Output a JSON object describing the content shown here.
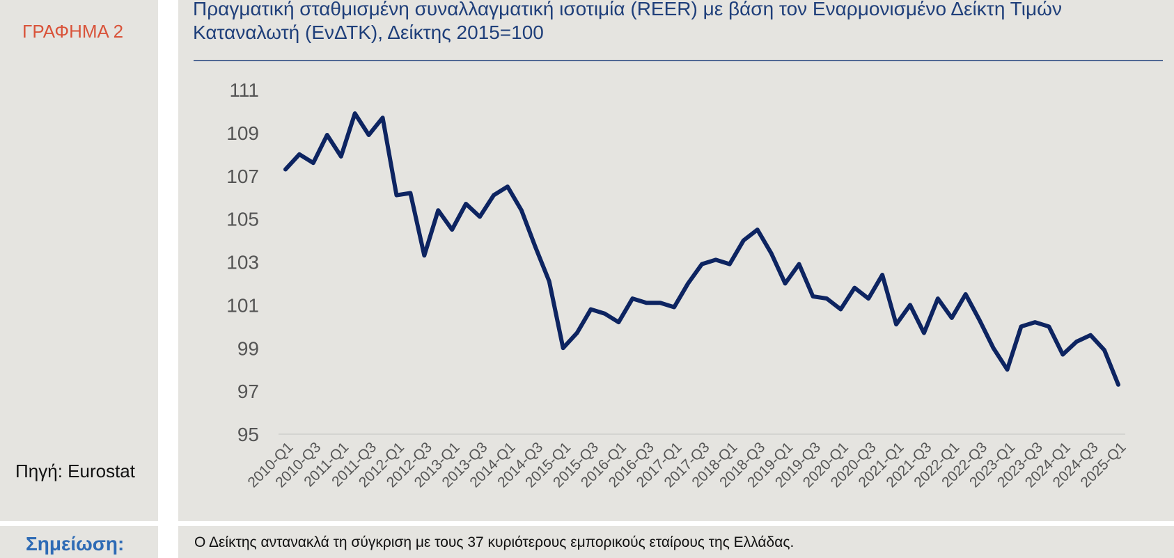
{
  "label": "ΓΡΑΦΗΜΑ 2",
  "source": "Πηγή: Eurostat",
  "note_label": "Σημείωση:",
  "note": "Ο Δείκτης αντανακλά τη σύγκριση με τους 37 κυριότερους εμπορικούς εταίρους της Ελλάδας.",
  "chart_data": {
    "type": "line",
    "title": "Πραγματική σταθμισμένη συναλλαγματική ισοτιμία (REER) με βάση τον Εναρμονισμένο Δείκτη Τιμών Καταναλωτή (ΕνΔΤΚ), Δείκτης 2015=100",
    "categories": [
      "2010-Q1",
      null,
      "2010-Q3",
      null,
      "2011-Q1",
      null,
      "2011-Q3",
      null,
      "2012-Q1",
      null,
      "2012-Q3",
      null,
      "2013-Q1",
      null,
      "2013-Q3",
      null,
      "2014-Q1",
      null,
      "2014-Q3",
      null,
      "2015-Q1",
      null,
      "2015-Q3",
      null,
      "2016-Q1",
      null,
      "2016-Q3",
      null,
      "2017-Q1",
      null,
      "2017-Q3",
      null,
      "2018-Q1",
      null,
      "2018-Q3",
      null,
      "2019-Q1",
      null,
      "2019-Q3",
      null,
      "2020-Q1",
      null,
      "2020-Q3",
      null,
      "2021-Q1",
      null,
      "2021-Q3",
      null,
      "2022-Q1",
      null,
      "2022-Q3",
      null,
      "2023-Q1",
      null,
      "2023-Q3",
      null,
      "2024-Q1",
      null,
      "2024-Q3",
      null,
      "2025-Q1"
    ],
    "values": [
      107.3,
      108.0,
      107.6,
      108.9,
      107.9,
      109.9,
      108.9,
      109.7,
      106.1,
      106.2,
      103.3,
      105.4,
      104.5,
      105.7,
      105.1,
      106.1,
      106.5,
      105.4,
      103.7,
      102.1,
      99.0,
      99.7,
      100.8,
      100.6,
      100.2,
      101.3,
      101.1,
      101.1,
      100.9,
      102.0,
      102.9,
      103.1,
      102.9,
      104.0,
      104.5,
      103.4,
      102.0,
      102.9,
      101.4,
      101.3,
      100.8,
      101.8,
      101.3,
      102.4,
      100.1,
      101.0,
      99.7,
      101.3,
      100.4,
      101.5,
      100.3,
      99.0,
      98.0,
      100.0,
      100.2,
      100.0,
      98.7,
      99.3,
      99.6,
      98.9,
      97.3
    ],
    "color": "#0d2461",
    "ylim": [
      95,
      111
    ],
    "yticks": [
      95,
      97,
      99,
      101,
      103,
      105,
      107,
      109,
      111
    ],
    "grid": false
  }
}
